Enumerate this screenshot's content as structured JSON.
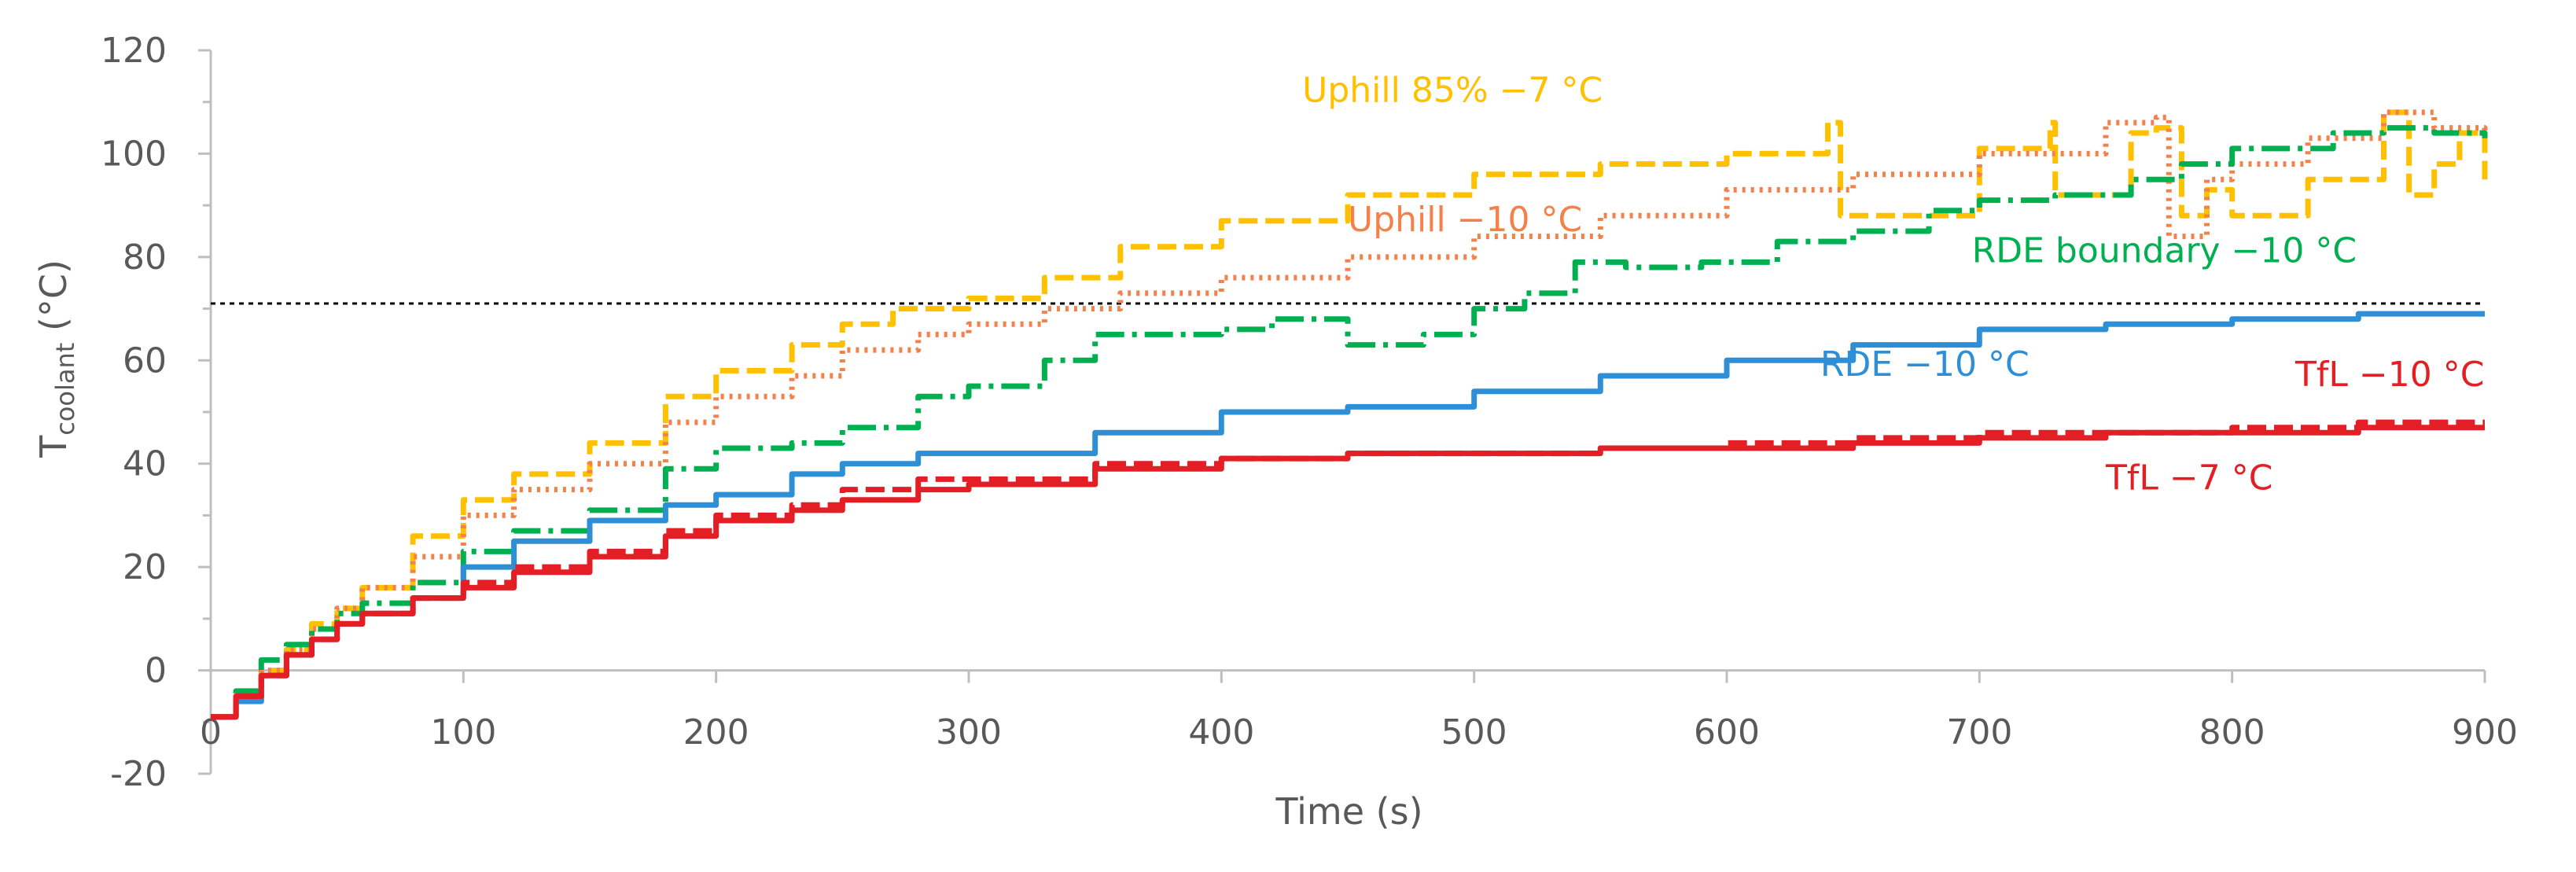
{
  "chart_data": {
    "type": "line",
    "xlabel": "Time (s)",
    "ylabel_main": "T",
    "ylabel_sub": "coolant",
    "ylabel_unit": " (°C)",
    "xlim": [
      0,
      900
    ],
    "ylim": [
      -20,
      120
    ],
    "xticks": [
      0,
      100,
      200,
      300,
      400,
      500,
      600,
      700,
      800,
      900
    ],
    "yticks": [
      -20,
      0,
      20,
      40,
      60,
      80,
      100,
      120
    ],
    "grid": false,
    "reference_line": {
      "y": 71,
      "color": "#000000",
      "style": "dotted"
    },
    "series": [
      {
        "name": "Uphill 85% −7 °C",
        "color": "#FFC000",
        "dash": "24 10",
        "label_at": [
          432,
          110
        ],
        "x": [
          0,
          10,
          20,
          30,
          40,
          50,
          60,
          80,
          100,
          120,
          150,
          180,
          200,
          230,
          250,
          270,
          300,
          330,
          360,
          400,
          450,
          500,
          550,
          600,
          640,
          645,
          700,
          728,
          730,
          760,
          770,
          780,
          790,
          800,
          830,
          860,
          870,
          880,
          890,
          900
        ],
        "y": [
          -9,
          -6,
          0,
          4,
          9,
          12,
          16,
          26,
          33,
          38,
          44,
          53,
          58,
          63,
          67,
          70,
          72,
          76,
          82,
          87,
          92,
          96,
          98,
          100,
          106,
          88,
          101,
          106,
          92,
          104,
          105,
          88,
          93,
          88,
          95,
          108,
          92,
          98,
          104,
          95
        ]
      },
      {
        "name": "Uphill −10 °C",
        "color": "#F4804A",
        "dash": "4 7",
        "label_at": [
          450,
          85
        ],
        "x": [
          0,
          10,
          20,
          30,
          40,
          50,
          60,
          80,
          100,
          120,
          150,
          180,
          200,
          230,
          250,
          280,
          300,
          330,
          360,
          400,
          450,
          500,
          550,
          600,
          650,
          700,
          750,
          770,
          775,
          790,
          800,
          830,
          860,
          880,
          900
        ],
        "y": [
          -9,
          -6,
          0,
          4,
          8,
          12,
          16,
          22,
          30,
          35,
          40,
          48,
          53,
          57,
          62,
          65,
          67,
          70,
          73,
          76,
          80,
          84,
          88,
          93,
          96,
          100,
          106,
          107,
          84,
          95,
          98,
          103,
          108,
          105,
          103
        ]
      },
      {
        "name": "RDE boundary −10 °C",
        "color": "#00B050",
        "dash": "36 10 6 10",
        "label_at": [
          697,
          79
        ],
        "x": [
          0,
          10,
          20,
          30,
          40,
          50,
          60,
          80,
          100,
          120,
          150,
          180,
          200,
          230,
          250,
          280,
          300,
          330,
          350,
          380,
          400,
          420,
          450,
          480,
          500,
          520,
          540,
          560,
          590,
          620,
          650,
          680,
          700,
          730,
          760,
          780,
          800,
          840,
          860,
          880,
          900
        ],
        "y": [
          -9,
          -4,
          2,
          5,
          8,
          11,
          13,
          17,
          23,
          27,
          31,
          39,
          43,
          44,
          47,
          53,
          55,
          60,
          65,
          65,
          66,
          68,
          63,
          65,
          70,
          73,
          79,
          78,
          79,
          83,
          85,
          89,
          91,
          92,
          95,
          98,
          101,
          104,
          105,
          104,
          103
        ]
      },
      {
        "name": "RDE −10 °C",
        "color": "#2E8FD6",
        "dash": "",
        "label_at": [
          637,
          57
        ],
        "x": [
          0,
          10,
          20,
          30,
          40,
          50,
          60,
          80,
          100,
          120,
          150,
          180,
          200,
          230,
          250,
          280,
          300,
          350,
          400,
          450,
          500,
          550,
          600,
          650,
          700,
          750,
          800,
          850,
          900
        ],
        "y": [
          -9,
          -6,
          -1,
          3,
          6,
          9,
          11,
          14,
          20,
          25,
          29,
          32,
          34,
          38,
          40,
          42,
          42,
          46,
          50,
          51,
          54,
          57,
          60,
          63,
          66,
          67,
          68,
          69,
          69
        ]
      },
      {
        "name": "TfL −10 °C",
        "color": "#E31E24",
        "dash": "24 10",
        "label_at": [
          825,
          55
        ],
        "x": [
          0,
          10,
          20,
          30,
          40,
          50,
          60,
          80,
          100,
          120,
          150,
          180,
          200,
          230,
          250,
          280,
          300,
          350,
          400,
          450,
          500,
          550,
          600,
          650,
          700,
          750,
          800,
          850,
          900
        ],
        "y": [
          -9,
          -5,
          -1,
          3,
          6,
          9,
          11,
          14,
          17,
          20,
          23,
          27,
          30,
          32,
          35,
          37,
          37,
          40,
          41,
          42,
          42,
          43,
          44,
          45,
          46,
          46,
          47,
          48,
          48
        ]
      },
      {
        "name": "TfL −7 °C",
        "color": "#E31E24",
        "dash": "",
        "label_at": [
          750,
          35
        ],
        "x": [
          0,
          10,
          20,
          30,
          40,
          50,
          60,
          80,
          100,
          120,
          150,
          180,
          200,
          230,
          250,
          280,
          300,
          350,
          400,
          450,
          500,
          550,
          600,
          650,
          700,
          750,
          800,
          850,
          900
        ],
        "y": [
          -9,
          -5,
          -1,
          3,
          6,
          9,
          11,
          14,
          16,
          19,
          22,
          26,
          29,
          31,
          33,
          35,
          36,
          39,
          41,
          42,
          42,
          43,
          43,
          44,
          45,
          46,
          46,
          47,
          47
        ]
      }
    ]
  }
}
